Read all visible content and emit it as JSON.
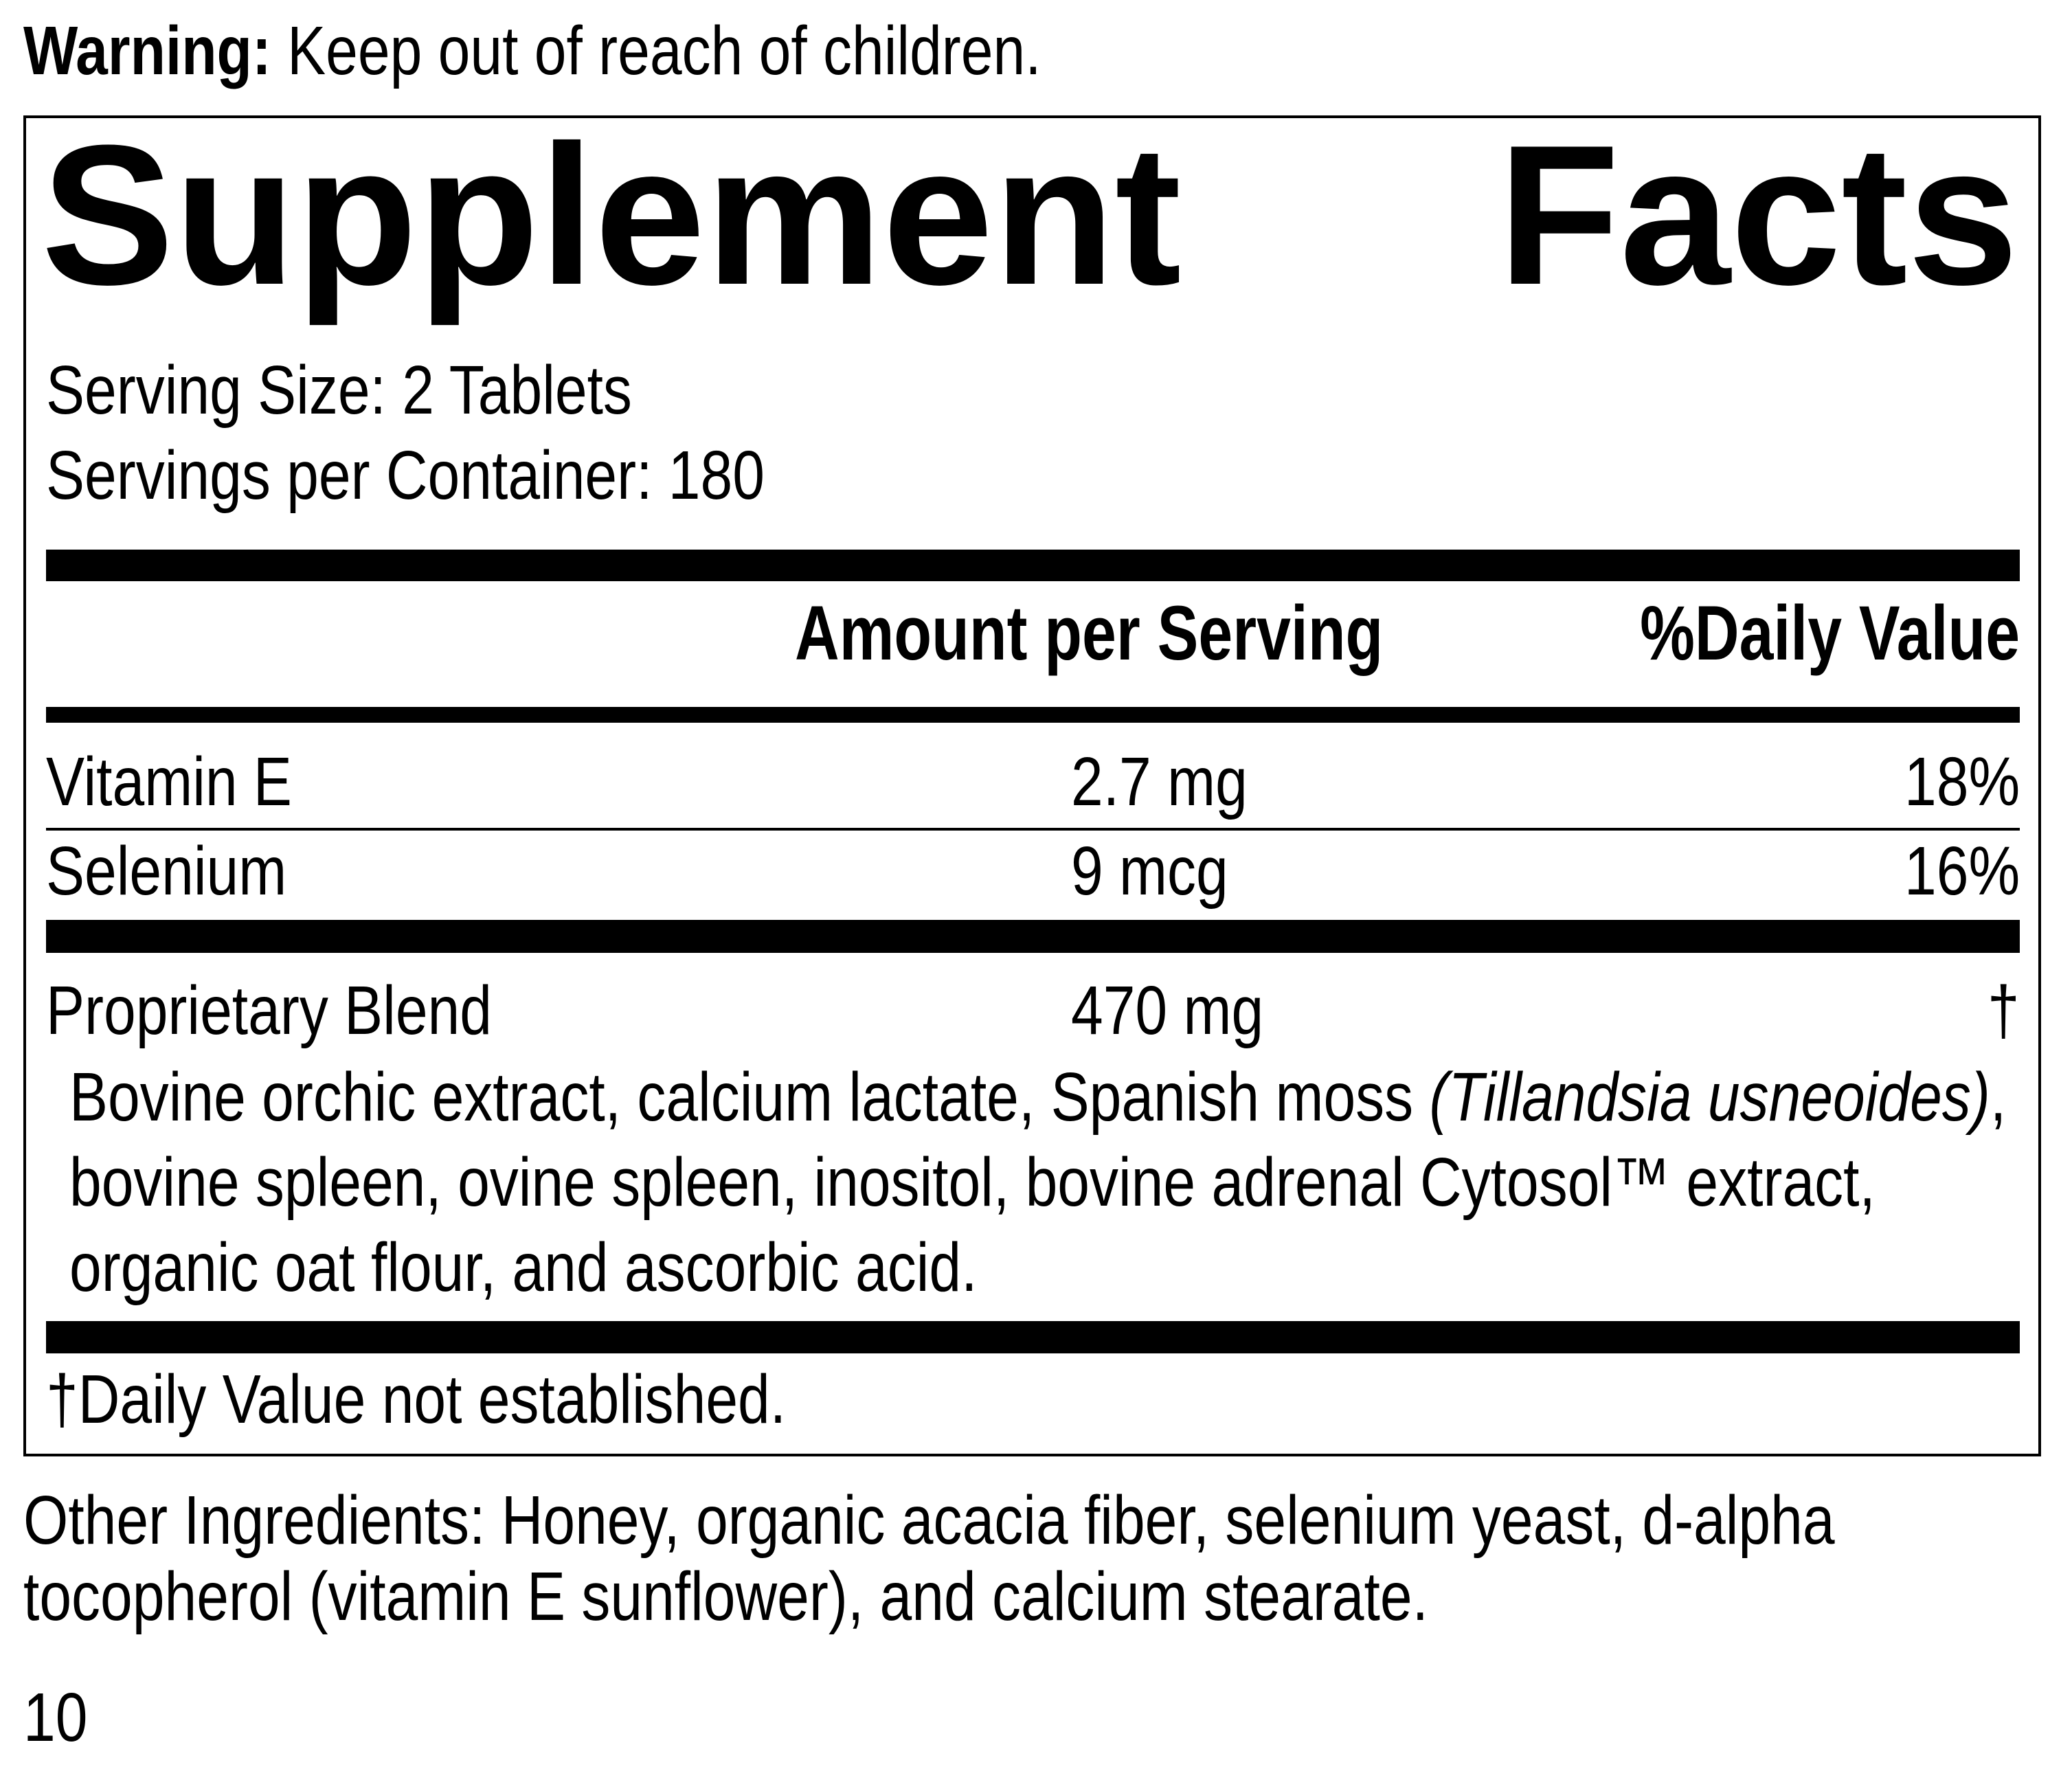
{
  "warning": {
    "label": "Warning:",
    "text": " Keep out of reach of children."
  },
  "panel": {
    "title_left": "Supplement",
    "title_right": "Facts",
    "serving_size": "Serving Size: 2 Tablets",
    "servings_per_container": "Servings per Container: 180",
    "columns": {
      "amount": "Amount per Serving",
      "daily_value": "%Daily Value"
    },
    "rows": [
      {
        "name": "Vitamin E",
        "amount": "2.7 mg",
        "dv": "18%"
      },
      {
        "name": "Selenium",
        "amount": "9 mcg",
        "dv": "16%"
      },
      {
        "name": "Proprietary Blend",
        "amount": "470 mg",
        "dv": "†"
      }
    ],
    "blend_lines": [
      "Bovine orchic extract, calcium lactate, Spanish moss ",
      "(Tillandsia usneoides)",
      ",",
      "bovine spleen, ovine spleen, inositol, bovine adrenal Cytosol™ extract,",
      "organic oat flour, and ascorbic acid."
    ],
    "footnote": "†Daily Value not established."
  },
  "other_ingredients": [
    "Other Ingredients: Honey, organic acacia fiber, selenium yeast, d-alpha",
    "tocopherol (vitamin E sunflower), and calcium stearate."
  ],
  "page_number": "10"
}
